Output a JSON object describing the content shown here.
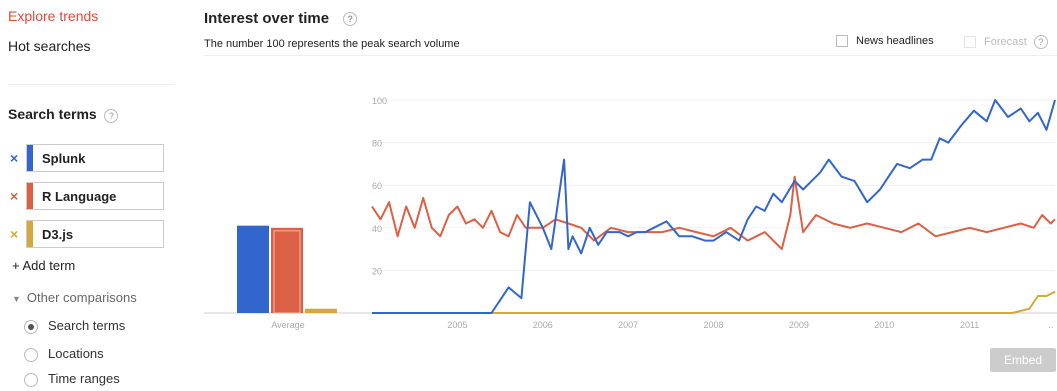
{
  "nav": {
    "explore": "Explore trends",
    "hot": "Hot searches"
  },
  "search_terms": {
    "title": "Search terms",
    "help": "?",
    "terms": [
      {
        "label": "Splunk",
        "color": "#3366cc"
      },
      {
        "label": "R Language",
        "color": "#dc6044"
      },
      {
        "label": "D3.js",
        "color": "#d4a83a"
      }
    ],
    "remove_icon": "×",
    "add_term": "+ Add term",
    "other_comparisons": "Other comparisons",
    "options": [
      {
        "label": "Search terms",
        "selected": true
      },
      {
        "label": "Locations",
        "selected": false
      },
      {
        "label": "Time ranges",
        "selected": false
      }
    ]
  },
  "header": {
    "title": "Interest over time",
    "subtitle": "The number 100 represents the peak search volume",
    "news_headlines": "News headlines",
    "forecast": "Forecast",
    "help": "?"
  },
  "embed": "Embed",
  "chart_data": {
    "type": "line",
    "average_label": "Average",
    "averages": [
      {
        "name": "Splunk",
        "value": 41,
        "color": "#3366cc"
      },
      {
        "name": "R Language",
        "value": 40,
        "color": "#dc6044"
      },
      {
        "name": "D3.js",
        "value": 2,
        "color": "#d4a83a"
      }
    ],
    "ylim": [
      0,
      100
    ],
    "yticks": [
      20,
      40,
      60,
      80,
      100
    ],
    "xlim": [
      2004.0,
      2012.0
    ],
    "xticks": [
      "2005",
      "2006",
      "2007",
      "2008",
      "2009",
      "2010",
      "2011",
      ".."
    ],
    "xtick_positions": [
      2005,
      2006,
      2007,
      2008,
      2009,
      2010,
      2011,
      2012
    ],
    "grid": true,
    "series": [
      {
        "name": "Splunk",
        "color": "#3366cc",
        "x": [
          2004.0,
          2005.4,
          2005.6,
          2005.75,
          2005.85,
          2006.0,
          2006.1,
          2006.25,
          2006.3,
          2006.35,
          2006.45,
          2006.55,
          2006.65,
          2006.75,
          2006.9,
          2007.0,
          2007.1,
          2007.2,
          2007.3,
          2007.45,
          2007.6,
          2007.75,
          2007.9,
          2008.0,
          2008.15,
          2008.3,
          2008.4,
          2008.5,
          2008.6,
          2008.7,
          2008.8,
          2008.95,
          2009.05,
          2009.15,
          2009.25,
          2009.35,
          2009.5,
          2009.65,
          2009.8,
          2009.95,
          2010.05,
          2010.15,
          2010.3,
          2010.45,
          2010.55,
          2010.65,
          2010.75,
          2010.9,
          2011.05,
          2011.2,
          2011.3,
          2011.45,
          2011.6,
          2011.7,
          2011.8,
          2011.9,
          2012.0
        ],
        "y": [
          0,
          0,
          12,
          7,
          52,
          40,
          30,
          72,
          30,
          36,
          28,
          40,
          32,
          38,
          38,
          36,
          38,
          38,
          40,
          43,
          36,
          36,
          34,
          34,
          38,
          34,
          44,
          50,
          48,
          56,
          52,
          62,
          58,
          62,
          66,
          72,
          64,
          62,
          52,
          58,
          64,
          70,
          68,
          72,
          72,
          82,
          80,
          88,
          95,
          90,
          100,
          92,
          96,
          90,
          94,
          86,
          100
        ]
      },
      {
        "name": "R Language",
        "color": "#dc6044",
        "x": [
          2004.0,
          2004.1,
          2004.2,
          2004.3,
          2004.4,
          2004.5,
          2004.6,
          2004.7,
          2004.8,
          2004.9,
          2005.0,
          2005.1,
          2005.2,
          2005.3,
          2005.4,
          2005.5,
          2005.6,
          2005.7,
          2005.8,
          2005.9,
          2006.0,
          2006.15,
          2006.3,
          2006.45,
          2006.6,
          2006.8,
          2007.0,
          2007.2,
          2007.4,
          2007.6,
          2007.8,
          2008.0,
          2008.2,
          2008.4,
          2008.6,
          2008.8,
          2008.9,
          2008.95,
          2009.05,
          2009.2,
          2009.4,
          2009.6,
          2009.8,
          2010.0,
          2010.2,
          2010.4,
          2010.6,
          2010.8,
          2011.0,
          2011.2,
          2011.4,
          2011.6,
          2011.75,
          2011.85,
          2011.95,
          2012.0
        ],
        "y": [
          50,
          44,
          52,
          36,
          50,
          40,
          54,
          40,
          36,
          46,
          50,
          42,
          44,
          40,
          48,
          38,
          36,
          46,
          40,
          40,
          40,
          44,
          42,
          40,
          34,
          40,
          38,
          38,
          38,
          40,
          38,
          36,
          40,
          34,
          38,
          30,
          46,
          64,
          38,
          46,
          42,
          40,
          42,
          40,
          38,
          42,
          36,
          38,
          40,
          38,
          40,
          42,
          40,
          46,
          42,
          44
        ]
      },
      {
        "name": "D3.js",
        "color": "#d4a83a",
        "x": [
          2004.0,
          2011.3,
          2011.5,
          2011.7,
          2011.8,
          2011.9,
          2012.0
        ],
        "y": [
          0,
          0,
          0,
          2,
          8,
          8,
          10
        ]
      }
    ]
  }
}
